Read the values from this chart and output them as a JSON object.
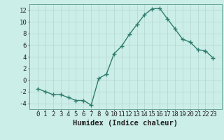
{
  "x": [
    0,
    1,
    2,
    3,
    4,
    5,
    6,
    7,
    8,
    9,
    10,
    11,
    12,
    13,
    14,
    15,
    16,
    17,
    18,
    19,
    20,
    21,
    22,
    23
  ],
  "y": [
    -1.5,
    -2.0,
    -2.5,
    -2.5,
    -3.0,
    -3.5,
    -3.5,
    -4.3,
    0.3,
    1.0,
    4.5,
    5.8,
    7.8,
    9.5,
    11.2,
    12.2,
    12.3,
    10.5,
    8.8,
    7.0,
    6.5,
    5.2,
    5.0,
    3.8
  ],
  "line_color": "#2e7d6e",
  "marker": "+",
  "markersize": 4,
  "markeredgewidth": 1.0,
  "linewidth": 1.0,
  "bg_color": "#cceee8",
  "grid_color": "#b8d8d4",
  "xlabel": "Humidex (Indice chaleur)",
  "xlabel_fontsize": 7.5,
  "tick_fontsize": 6.5,
  "ylim": [
    -5,
    13
  ],
  "yticks": [
    -4,
    -2,
    0,
    2,
    4,
    6,
    8,
    10,
    12
  ],
  "xticks": [
    0,
    1,
    2,
    3,
    4,
    5,
    6,
    7,
    8,
    9,
    10,
    11,
    12,
    13,
    14,
    15,
    16,
    17,
    18,
    19,
    20,
    21,
    22,
    23
  ]
}
